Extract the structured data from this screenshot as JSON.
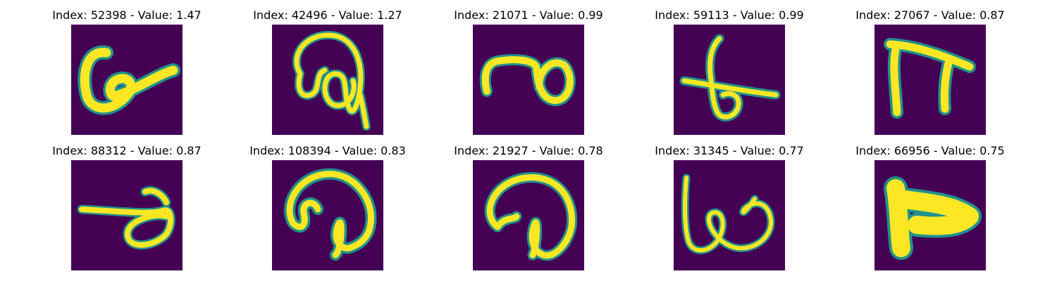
{
  "grid": {
    "rows": 2,
    "columns": 5,
    "colormap": [
      "#440154",
      "#3b528b",
      "#21918c",
      "#5ec962",
      "#fde725"
    ],
    "items": [
      {
        "title": "Index: 52398 - Value: 1.47"
      },
      {
        "title": "Index: 42496 - Value: 1.27"
      },
      {
        "title": "Index: 21071 - Value: 0.99"
      },
      {
        "title": "Index: 59113 - Value: 0.99"
      },
      {
        "title": "Index: 27067 - Value: 0.87"
      },
      {
        "title": "Index: 88312 - Value: 0.87"
      },
      {
        "title": "Index: 108394 - Value: 0.83"
      },
      {
        "title": "Index: 21927 - Value: 0.78"
      },
      {
        "title": "Index: 31345 - Value: 0.77"
      },
      {
        "title": "Index: 66956 - Value: 0.75"
      }
    ]
  }
}
